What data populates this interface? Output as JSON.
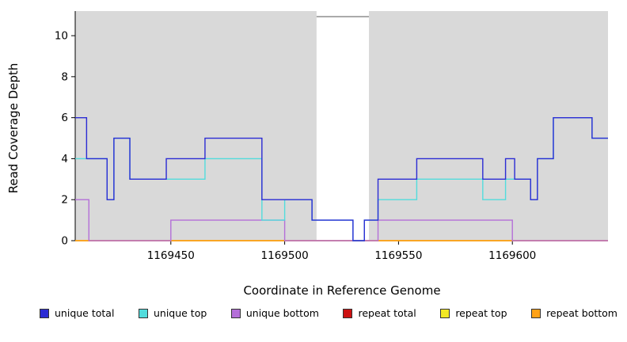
{
  "chart_data": {
    "type": "line",
    "title": "",
    "xlabel": "Coordinate in Reference Genome",
    "ylabel": "Read Coverage Depth",
    "xlim": [
      1169408,
      1169642
    ],
    "ylim": [
      0,
      11.2
    ],
    "x_ticks": [
      1169450,
      1169500,
      1169550,
      1169600
    ],
    "y_ticks": [
      0,
      2,
      4,
      6,
      8,
      10
    ],
    "grid": false,
    "background": "#d9d9d9",
    "white_band": {
      "x1": 1169514,
      "x2": 1169537
    },
    "series": [
      {
        "name": "repeat total",
        "color": "#cc1111",
        "points": [
          [
            1169408,
            0
          ],
          [
            1169642,
            0
          ]
        ]
      },
      {
        "name": "repeat top",
        "color": "#f2e825",
        "points": [
          [
            1169408,
            0
          ],
          [
            1169642,
            0
          ]
        ]
      },
      {
        "name": "repeat bottom",
        "color": "#ffa217",
        "points": [
          [
            1169408,
            0
          ],
          [
            1169642,
            0
          ]
        ]
      },
      {
        "name": "unique bottom",
        "color": "#b46fd8",
        "points": [
          [
            1169408,
            2
          ],
          [
            1169414,
            0
          ],
          [
            1169450,
            1
          ],
          [
            1169500,
            0
          ],
          [
            1169541,
            1
          ],
          [
            1169600,
            0
          ],
          [
            1169642,
            0
          ]
        ]
      },
      {
        "name": "unique top",
        "color": "#52dcdc",
        "points": [
          [
            1169408,
            4
          ],
          [
            1169422,
            2
          ],
          [
            1169425,
            5
          ],
          [
            1169432,
            3
          ],
          [
            1169448,
            3
          ],
          [
            1169465,
            4
          ],
          [
            1169490,
            1
          ],
          [
            1169500,
            2
          ],
          [
            1169512,
            1
          ],
          [
            1169530,
            0
          ],
          [
            1169535,
            1
          ],
          [
            1169541,
            2
          ],
          [
            1169558,
            3
          ],
          [
            1169587,
            2
          ],
          [
            1169597,
            3
          ],
          [
            1169601,
            3
          ],
          [
            1169608,
            2
          ],
          [
            1169611,
            4
          ],
          [
            1169618,
            6
          ],
          [
            1169635,
            5
          ],
          [
            1169642,
            5
          ]
        ]
      },
      {
        "name": "unique total",
        "color": "#2b2bd4",
        "points": [
          [
            1169408,
            6
          ],
          [
            1169413,
            4
          ],
          [
            1169422,
            2
          ],
          [
            1169425,
            5
          ],
          [
            1169432,
            3
          ],
          [
            1169448,
            4
          ],
          [
            1169465,
            5
          ],
          [
            1169490,
            2
          ],
          [
            1169512,
            1
          ],
          [
            1169530,
            0
          ],
          [
            1169535,
            1
          ],
          [
            1169541,
            3
          ],
          [
            1169558,
            4
          ],
          [
            1169587,
            3
          ],
          [
            1169597,
            4
          ],
          [
            1169601,
            3
          ],
          [
            1169608,
            2
          ],
          [
            1169611,
            4
          ],
          [
            1169618,
            6
          ],
          [
            1169635,
            5
          ],
          [
            1169642,
            5
          ]
        ]
      }
    ],
    "legend": [
      {
        "label": "unique total",
        "color": "#2b2bd4"
      },
      {
        "label": "unique top",
        "color": "#52dcdc"
      },
      {
        "label": "unique bottom",
        "color": "#b46fd8"
      },
      {
        "label": "repeat total",
        "color": "#cc1111"
      },
      {
        "label": "repeat top",
        "color": "#f2e825"
      },
      {
        "label": "repeat bottom",
        "color": "#ffa217"
      }
    ],
    "legend_position": "bottom"
  }
}
